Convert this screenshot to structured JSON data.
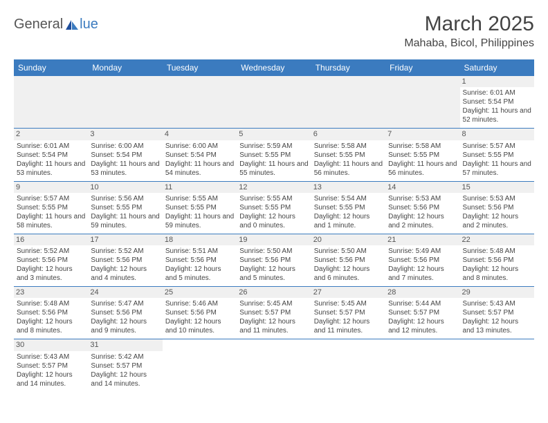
{
  "logo": {
    "text1": "General",
    "text2": "lue"
  },
  "title": "March 2025",
  "location": "Mahaba, Bicol, Philippines",
  "columns": [
    "Sunday",
    "Monday",
    "Tuesday",
    "Wednesday",
    "Thursday",
    "Friday",
    "Saturday"
  ],
  "colors": {
    "header_bg": "#3b7bbf",
    "grid": "#3b7bbf",
    "daynum_bg": "#f0f0f0"
  },
  "weeks": [
    [
      null,
      null,
      null,
      null,
      null,
      null,
      {
        "n": "1",
        "sr": "Sunrise: 6:01 AM",
        "ss": "Sunset: 5:54 PM",
        "dl": "Daylight: 11 hours and 52 minutes."
      }
    ],
    [
      {
        "n": "2",
        "sr": "Sunrise: 6:01 AM",
        "ss": "Sunset: 5:54 PM",
        "dl": "Daylight: 11 hours and 53 minutes."
      },
      {
        "n": "3",
        "sr": "Sunrise: 6:00 AM",
        "ss": "Sunset: 5:54 PM",
        "dl": "Daylight: 11 hours and 53 minutes."
      },
      {
        "n": "4",
        "sr": "Sunrise: 6:00 AM",
        "ss": "Sunset: 5:54 PM",
        "dl": "Daylight: 11 hours and 54 minutes."
      },
      {
        "n": "5",
        "sr": "Sunrise: 5:59 AM",
        "ss": "Sunset: 5:55 PM",
        "dl": "Daylight: 11 hours and 55 minutes."
      },
      {
        "n": "6",
        "sr": "Sunrise: 5:58 AM",
        "ss": "Sunset: 5:55 PM",
        "dl": "Daylight: 11 hours and 56 minutes."
      },
      {
        "n": "7",
        "sr": "Sunrise: 5:58 AM",
        "ss": "Sunset: 5:55 PM",
        "dl": "Daylight: 11 hours and 56 minutes."
      },
      {
        "n": "8",
        "sr": "Sunrise: 5:57 AM",
        "ss": "Sunset: 5:55 PM",
        "dl": "Daylight: 11 hours and 57 minutes."
      }
    ],
    [
      {
        "n": "9",
        "sr": "Sunrise: 5:57 AM",
        "ss": "Sunset: 5:55 PM",
        "dl": "Daylight: 11 hours and 58 minutes."
      },
      {
        "n": "10",
        "sr": "Sunrise: 5:56 AM",
        "ss": "Sunset: 5:55 PM",
        "dl": "Daylight: 11 hours and 59 minutes."
      },
      {
        "n": "11",
        "sr": "Sunrise: 5:55 AM",
        "ss": "Sunset: 5:55 PM",
        "dl": "Daylight: 11 hours and 59 minutes."
      },
      {
        "n": "12",
        "sr": "Sunrise: 5:55 AM",
        "ss": "Sunset: 5:55 PM",
        "dl": "Daylight: 12 hours and 0 minutes."
      },
      {
        "n": "13",
        "sr": "Sunrise: 5:54 AM",
        "ss": "Sunset: 5:55 PM",
        "dl": "Daylight: 12 hours and 1 minute."
      },
      {
        "n": "14",
        "sr": "Sunrise: 5:53 AM",
        "ss": "Sunset: 5:56 PM",
        "dl": "Daylight: 12 hours and 2 minutes."
      },
      {
        "n": "15",
        "sr": "Sunrise: 5:53 AM",
        "ss": "Sunset: 5:56 PM",
        "dl": "Daylight: 12 hours and 2 minutes."
      }
    ],
    [
      {
        "n": "16",
        "sr": "Sunrise: 5:52 AM",
        "ss": "Sunset: 5:56 PM",
        "dl": "Daylight: 12 hours and 3 minutes."
      },
      {
        "n": "17",
        "sr": "Sunrise: 5:52 AM",
        "ss": "Sunset: 5:56 PM",
        "dl": "Daylight: 12 hours and 4 minutes."
      },
      {
        "n": "18",
        "sr": "Sunrise: 5:51 AM",
        "ss": "Sunset: 5:56 PM",
        "dl": "Daylight: 12 hours and 5 minutes."
      },
      {
        "n": "19",
        "sr": "Sunrise: 5:50 AM",
        "ss": "Sunset: 5:56 PM",
        "dl": "Daylight: 12 hours and 5 minutes."
      },
      {
        "n": "20",
        "sr": "Sunrise: 5:50 AM",
        "ss": "Sunset: 5:56 PM",
        "dl": "Daylight: 12 hours and 6 minutes."
      },
      {
        "n": "21",
        "sr": "Sunrise: 5:49 AM",
        "ss": "Sunset: 5:56 PM",
        "dl": "Daylight: 12 hours and 7 minutes."
      },
      {
        "n": "22",
        "sr": "Sunrise: 5:48 AM",
        "ss": "Sunset: 5:56 PM",
        "dl": "Daylight: 12 hours and 8 minutes."
      }
    ],
    [
      {
        "n": "23",
        "sr": "Sunrise: 5:48 AM",
        "ss": "Sunset: 5:56 PM",
        "dl": "Daylight: 12 hours and 8 minutes."
      },
      {
        "n": "24",
        "sr": "Sunrise: 5:47 AM",
        "ss": "Sunset: 5:56 PM",
        "dl": "Daylight: 12 hours and 9 minutes."
      },
      {
        "n": "25",
        "sr": "Sunrise: 5:46 AM",
        "ss": "Sunset: 5:56 PM",
        "dl": "Daylight: 12 hours and 10 minutes."
      },
      {
        "n": "26",
        "sr": "Sunrise: 5:45 AM",
        "ss": "Sunset: 5:57 PM",
        "dl": "Daylight: 12 hours and 11 minutes."
      },
      {
        "n": "27",
        "sr": "Sunrise: 5:45 AM",
        "ss": "Sunset: 5:57 PM",
        "dl": "Daylight: 12 hours and 11 minutes."
      },
      {
        "n": "28",
        "sr": "Sunrise: 5:44 AM",
        "ss": "Sunset: 5:57 PM",
        "dl": "Daylight: 12 hours and 12 minutes."
      },
      {
        "n": "29",
        "sr": "Sunrise: 5:43 AM",
        "ss": "Sunset: 5:57 PM",
        "dl": "Daylight: 12 hours and 13 minutes."
      }
    ],
    [
      {
        "n": "30",
        "sr": "Sunrise: 5:43 AM",
        "ss": "Sunset: 5:57 PM",
        "dl": "Daylight: 12 hours and 14 minutes."
      },
      {
        "n": "31",
        "sr": "Sunrise: 5:42 AM",
        "ss": "Sunset: 5:57 PM",
        "dl": "Daylight: 12 hours and 14 minutes."
      },
      null,
      null,
      null,
      null,
      null
    ]
  ]
}
